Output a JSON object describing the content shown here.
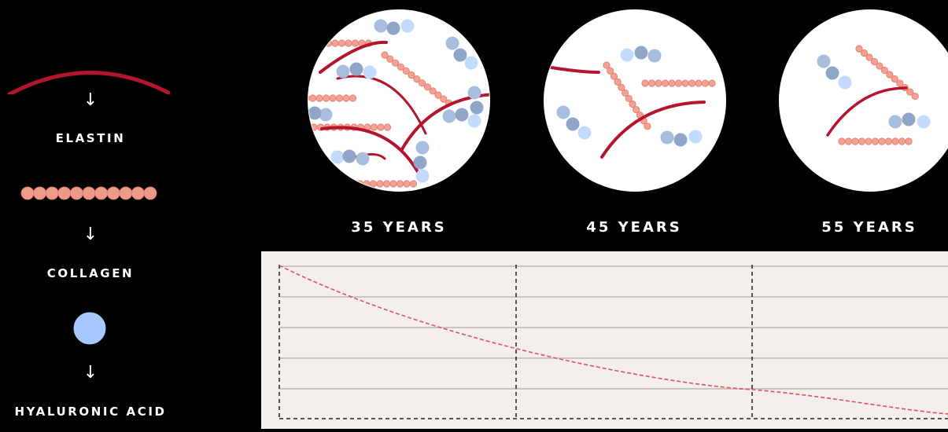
{
  "legend": [
    {
      "label": "ELASTIN",
      "icon": "elastin-fiber-icon",
      "color": "#b5142f"
    },
    {
      "label": "COLLAGEN",
      "icon": "collagen-bead-chain-icon",
      "color": "#ed9a88"
    },
    {
      "label": "HYALURONIC ACID",
      "icon": "hyaluronic-acid-sphere-icon",
      "color": "#a6c8ff"
    }
  ],
  "arrow_glyph": "↓",
  "ages": [
    "35 YEARS",
    "45 YEARS",
    "55 YEARS"
  ],
  "colors": {
    "background": "#000000",
    "panel": "#f3f0ec",
    "gridline": "#c9c6c2",
    "curve": "#e64a6a",
    "elastin": "#b5142f",
    "collagen": "#ed9a88",
    "hyaluronic": "#a6c8ff"
  }
}
